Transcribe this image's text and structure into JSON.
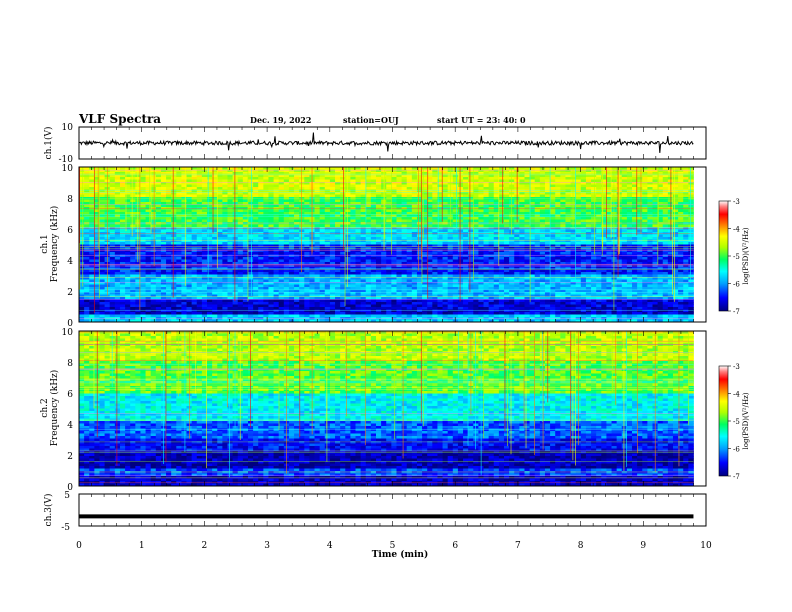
{
  "header": {
    "title": "VLF Spectra",
    "date": "Dec. 19, 2022",
    "station": "station=OUJ",
    "start_ut": "start  UT  =   23: 40: 0"
  },
  "colorbar": {
    "ticks": [
      "-3",
      "-4",
      "-5",
      "-6",
      "-7"
    ],
    "label": "log(PSD)(V²/Hz)",
    "colors": [
      "#000080",
      "#0000ff",
      "#00a0ff",
      "#00ffff",
      "#00ff60",
      "#b0ff00",
      "#ffff00",
      "#ff8000",
      "#ff0000",
      "#ff8080",
      "#ffffff"
    ]
  },
  "chart_data": [
    {
      "type": "line",
      "panel": "ch.1",
      "ylabel": "ch.1(V)",
      "y_ticks": [
        "10",
        "-10"
      ],
      "ylim": [
        -10,
        10
      ],
      "xlim": [
        0,
        10
      ],
      "description_level_volts": 0,
      "color": "#000000"
    },
    {
      "type": "heatmap",
      "panel": "ch.1",
      "ylabel_top": "ch.1",
      "ylabel": "Frequency (kHz)",
      "y_ticks": [
        "10",
        "8",
        "6",
        "4",
        "2",
        "0"
      ],
      "ylim": [
        0,
        10
      ],
      "xlim": [
        0,
        10
      ],
      "data_end_min": 9.8,
      "color_range": [
        -7,
        -3
      ]
    },
    {
      "type": "heatmap",
      "panel": "ch.2",
      "ylabel_top": "ch.2",
      "ylabel": "Frequency (kHz)",
      "y_ticks": [
        "10",
        "8",
        "6",
        "4",
        "2",
        "0"
      ],
      "ylim": [
        0,
        10
      ],
      "xlim": [
        0,
        10
      ],
      "data_end_min": 9.8,
      "color_range": [
        -7,
        -3
      ]
    },
    {
      "type": "line",
      "panel": "ch.3",
      "ylabel": "ch.3(V)",
      "y_ticks": [
        "5",
        "-5"
      ],
      "ylim": [
        -5,
        5
      ],
      "xlim": [
        0,
        10
      ],
      "constant_value_volts": -2,
      "color": "#000000"
    }
  ],
  "xaxis": {
    "label": "Time  (min)",
    "ticks": [
      "0",
      "1",
      "2",
      "3",
      "4",
      "5",
      "6",
      "7",
      "8",
      "9",
      "10"
    ]
  }
}
